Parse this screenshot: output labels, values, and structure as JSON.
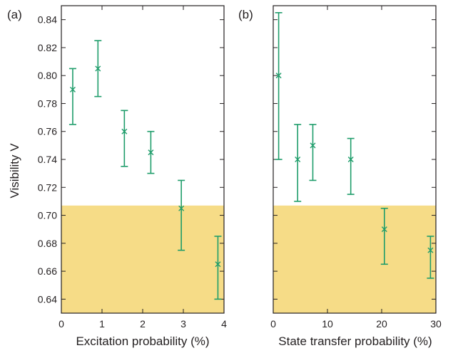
{
  "figure": {
    "ylabel": "Visibility V",
    "threshold": 0.707,
    "colors": {
      "marker": "#1f9d6b",
      "threshold_fill": "#f6dc87",
      "axis": "#231f20"
    }
  },
  "chart_data": [
    {
      "type": "scatter",
      "panel_label": "(a)",
      "xlabel": "Excitation probability (%)",
      "ylabel": "Visibility V",
      "xlim": [
        0,
        4
      ],
      "ylim": [
        0.63,
        0.85
      ],
      "x_ticks": [
        0,
        1,
        2,
        3,
        4
      ],
      "y_ticks": [
        0.64,
        0.66,
        0.68,
        0.7,
        0.72,
        0.74,
        0.76,
        0.78,
        0.8,
        0.82,
        0.84
      ],
      "y_tick_labels": [
        "0.64",
        "0.66",
        "0.68",
        "0.70",
        "0.72",
        "0.74",
        "0.76",
        "0.78",
        "0.80",
        "0.82",
        "0.84"
      ],
      "shaded_region": {
        "y_from": 0.63,
        "y_to": 0.707
      },
      "points": [
        {
          "x": 0.28,
          "y": 0.79,
          "y_lo": 0.765,
          "y_hi": 0.805
        },
        {
          "x": 0.9,
          "y": 0.805,
          "y_lo": 0.785,
          "y_hi": 0.825
        },
        {
          "x": 1.55,
          "y": 0.76,
          "y_lo": 0.735,
          "y_hi": 0.775
        },
        {
          "x": 2.2,
          "y": 0.745,
          "y_lo": 0.73,
          "y_hi": 0.76
        },
        {
          "x": 2.95,
          "y": 0.705,
          "y_lo": 0.675,
          "y_hi": 0.725
        },
        {
          "x": 3.85,
          "y": 0.665,
          "y_lo": 0.64,
          "y_hi": 0.685
        }
      ],
      "grid": false
    },
    {
      "type": "scatter",
      "panel_label": "(b)",
      "xlabel": "State transfer probability (%)",
      "xlim": [
        0,
        30
      ],
      "ylim": [
        0.63,
        0.85
      ],
      "x_ticks": [
        0,
        10,
        20,
        30
      ],
      "shaded_region": {
        "y_from": 0.63,
        "y_to": 0.707
      },
      "points": [
        {
          "x": 1.0,
          "y": 0.8,
          "y_lo": 0.74,
          "y_hi": 0.845
        },
        {
          "x": 4.5,
          "y": 0.74,
          "y_lo": 0.71,
          "y_hi": 0.765
        },
        {
          "x": 7.3,
          "y": 0.75,
          "y_lo": 0.725,
          "y_hi": 0.765
        },
        {
          "x": 14.3,
          "y": 0.74,
          "y_lo": 0.715,
          "y_hi": 0.755
        },
        {
          "x": 20.5,
          "y": 0.69,
          "y_lo": 0.665,
          "y_hi": 0.705
        },
        {
          "x": 29.0,
          "y": 0.675,
          "y_lo": 0.655,
          "y_hi": 0.685
        }
      ],
      "grid": false
    }
  ]
}
